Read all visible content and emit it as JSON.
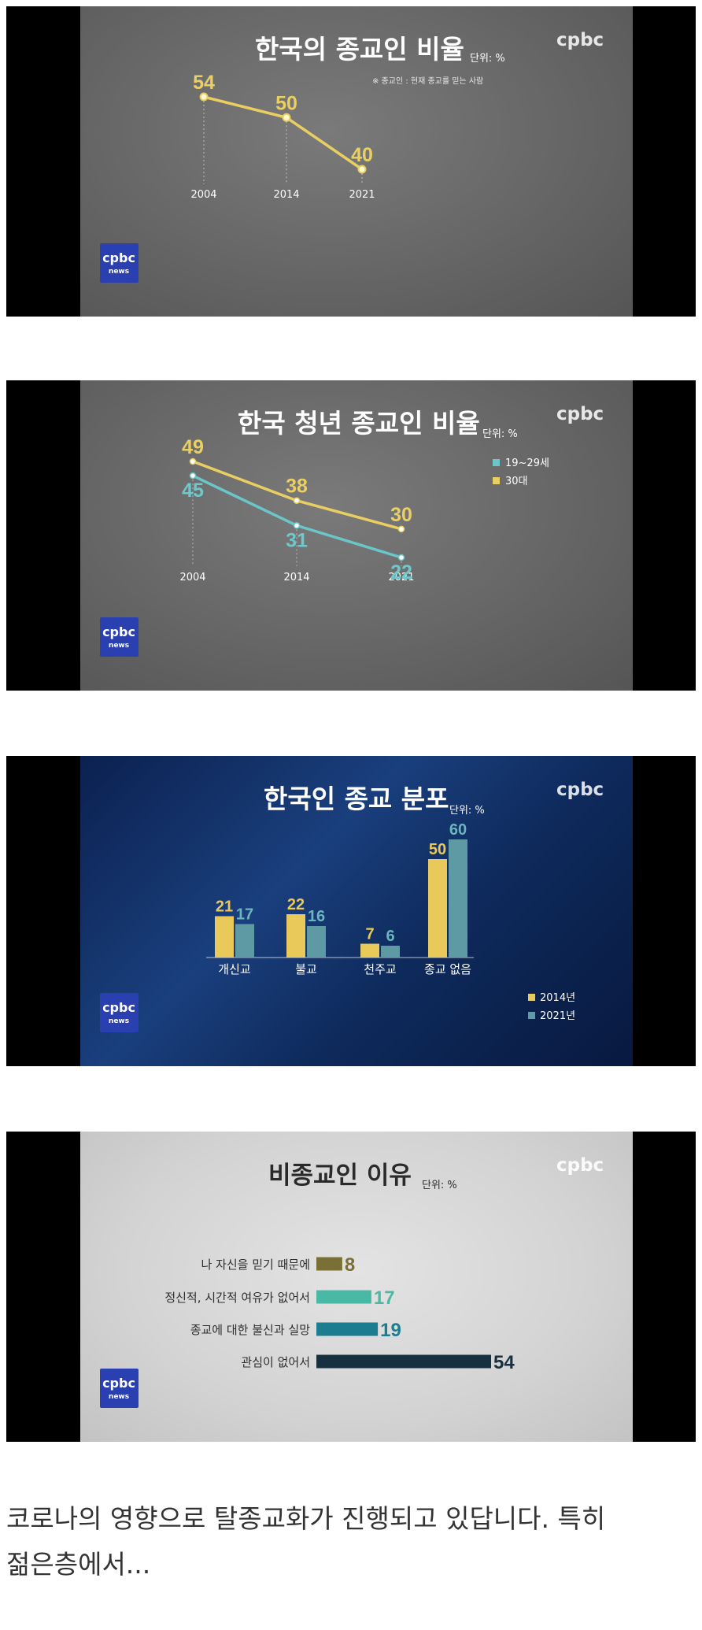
{
  "colors": {
    "yellow": "#e9cf62",
    "teal": "#6ac6c9",
    "bar_2014": "#e8c95a",
    "bar_2021": "#5d9aa3",
    "olive": "#7a6f35",
    "mint": "#49b8a5",
    "teal_dark": "#1b7d8f",
    "navy": "#16303f"
  },
  "logo": {
    "watermark": "cpbc",
    "badge_main": "cpbc",
    "badge_sub": "news"
  },
  "caption": {
    "line1": "코로나의 영향으로 탈종교화가 진행되고 있답니다. 특히",
    "line2": "젊은층에서..."
  },
  "chart_data": [
    {
      "type": "line",
      "title": "한국의 종교인 비율",
      "unit": "단위: %",
      "note": "※ 종교인 : 현재 종교를 믿는 사람",
      "x": [
        "2004",
        "2014",
        "2021"
      ],
      "series": [
        {
          "values": [
            54,
            50,
            40
          ],
          "color": "#e9cf62"
        }
      ],
      "data_labels": [
        "54",
        "50",
        "40"
      ],
      "ylim": [
        40,
        54
      ],
      "grid": false
    },
    {
      "type": "line",
      "title": "한국 청년 종교인 비율",
      "unit": "단위: %",
      "x": [
        "2004",
        "2014",
        "2021"
      ],
      "series": [
        {
          "name": "30대",
          "values": [
            49,
            38,
            30
          ],
          "color": "#e9cf62",
          "labels": [
            "49",
            "38",
            "30"
          ]
        },
        {
          "name": "19~29세",
          "values": [
            45,
            31,
            22
          ],
          "color": "#6ac6c9",
          "labels": [
            "45",
            "31",
            "22"
          ]
        }
      ],
      "legend": {
        "placement": "top-right",
        "items": [
          "19~29세",
          "30대"
        ]
      },
      "ylim": [
        22,
        49
      ],
      "grid": false
    },
    {
      "type": "bar",
      "title": "한국인 종교 분포",
      "unit": "단위: %",
      "categories": [
        "개신교",
        "불교",
        "천주교",
        "종교 없음"
      ],
      "series": [
        {
          "name": "2014년",
          "values": [
            21,
            22,
            7,
            50
          ],
          "color": "#e8c95a",
          "labels": [
            "21",
            "22",
            "7",
            "50"
          ]
        },
        {
          "name": "2021년",
          "values": [
            17,
            16,
            6,
            60
          ],
          "color": "#5d9aa3",
          "labels": [
            "17",
            "16",
            "6",
            "60"
          ]
        }
      ],
      "legend": {
        "placement": "bottom-right"
      },
      "ylim": [
        0,
        60
      ],
      "grid": false
    },
    {
      "type": "bar",
      "orientation": "horizontal",
      "title": "비종교인 이유",
      "unit": "단위: %",
      "categories": [
        "나 자신을 믿기 때문에",
        "정신적, 시간적 여유가 없어서",
        "종교에 대한 불신과 실망",
        "관심이 없어서"
      ],
      "values": [
        8,
        17,
        19,
        54
      ],
      "labels": [
        "8",
        "17",
        "19",
        "54"
      ],
      "colors": [
        "#7a6f35",
        "#49b8a5",
        "#1b7d8f",
        "#16303f"
      ],
      "xlim": [
        0,
        54
      ],
      "grid": false
    }
  ]
}
